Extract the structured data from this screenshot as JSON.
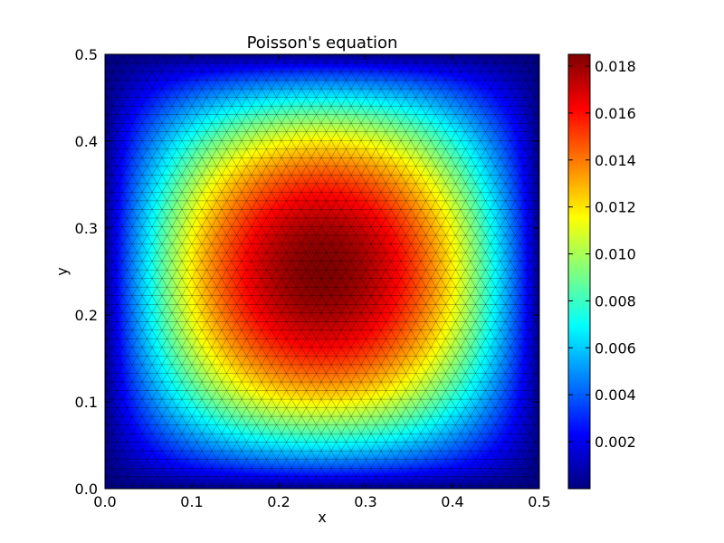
{
  "chart_data": {
    "type": "heatmap",
    "title": "Poisson's equation",
    "xlabel": "x",
    "ylabel": "y",
    "xlim": [
      0.0,
      0.5
    ],
    "ylim": [
      0.0,
      0.5
    ],
    "x_ticks": [
      {
        "value": 0.0,
        "label": "0.0"
      },
      {
        "value": 0.1,
        "label": "0.1"
      },
      {
        "value": 0.2,
        "label": "0.2"
      },
      {
        "value": 0.3,
        "label": "0.3"
      },
      {
        "value": 0.4,
        "label": "0.4"
      },
      {
        "value": 0.5,
        "label": "0.5"
      }
    ],
    "y_ticks": [
      {
        "value": 0.0,
        "label": "0.0"
      },
      {
        "value": 0.1,
        "label": "0.1"
      },
      {
        "value": 0.2,
        "label": "0.2"
      },
      {
        "value": 0.3,
        "label": "0.3"
      },
      {
        "value": 0.4,
        "label": "0.4"
      },
      {
        "value": 0.5,
        "label": "0.5"
      }
    ],
    "colormap": "jet",
    "colorbar": {
      "vmin": 0.0,
      "vmax": 0.0185,
      "ticks": [
        {
          "value": 0.002,
          "label": "0.002"
        },
        {
          "value": 0.004,
          "label": "0.004"
        },
        {
          "value": 0.006,
          "label": "0.006"
        },
        {
          "value": 0.008,
          "label": "0.008"
        },
        {
          "value": 0.01,
          "label": "0.010"
        },
        {
          "value": 0.012,
          "label": "0.012"
        },
        {
          "value": 0.014,
          "label": "0.014"
        },
        {
          "value": 0.016,
          "label": "0.016"
        },
        {
          "value": 0.018,
          "label": "0.018"
        }
      ]
    },
    "field": {
      "peak_value": 0.0185,
      "peak_location": [
        0.25,
        0.25
      ],
      "boundary_value": 0.0
    },
    "mesh": "triangular, edges drawn in black",
    "grid": false,
    "legend": "none"
  }
}
